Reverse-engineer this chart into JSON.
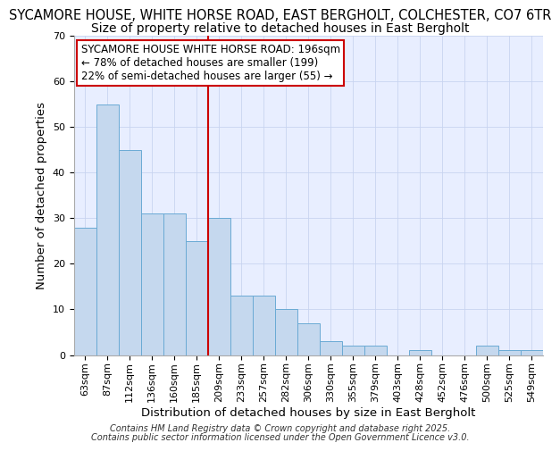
{
  "title_line1": "SYCAMORE HOUSE, WHITE HORSE ROAD, EAST BERGHOLT, COLCHESTER, CO7 6TR",
  "title_line2": "Size of property relative to detached houses in East Bergholt",
  "xlabel": "Distribution of detached houses by size in East Bergholt",
  "ylabel": "Number of detached properties",
  "categories": [
    "63sqm",
    "87sqm",
    "112sqm",
    "136sqm",
    "160sqm",
    "185sqm",
    "209sqm",
    "233sqm",
    "257sqm",
    "282sqm",
    "306sqm",
    "330sqm",
    "355sqm",
    "379sqm",
    "403sqm",
    "428sqm",
    "452sqm",
    "476sqm",
    "500sqm",
    "525sqm",
    "549sqm"
  ],
  "values": [
    28,
    55,
    45,
    31,
    31,
    25,
    30,
    13,
    13,
    10,
    7,
    3,
    2,
    2,
    0,
    1,
    0,
    0,
    2,
    1,
    1
  ],
  "bar_color": "#c5d8ee",
  "bar_edge_color": "#6aaad4",
  "red_line_index": 6,
  "red_line_color": "#cc0000",
  "ylim": [
    0,
    70
  ],
  "yticks": [
    0,
    10,
    20,
    30,
    40,
    50,
    60,
    70
  ],
  "annotation_text": "SYCAMORE HOUSE WHITE HORSE ROAD: 196sqm\n← 78% of detached houses are smaller (199)\n22% of semi-detached houses are larger (55) →",
  "annotation_box_edge": "#cc0000",
  "background_color": "#e8eeff",
  "footer_line1": "Contains HM Land Registry data © Crown copyright and database right 2025.",
  "footer_line2": "Contains public sector information licensed under the Open Government Licence v3.0.",
  "title1_fontsize": 10.5,
  "title2_fontsize": 10,
  "axis_label_fontsize": 9.5,
  "tick_fontsize": 8,
  "annotation_fontsize": 8.5,
  "footer_fontsize": 7
}
